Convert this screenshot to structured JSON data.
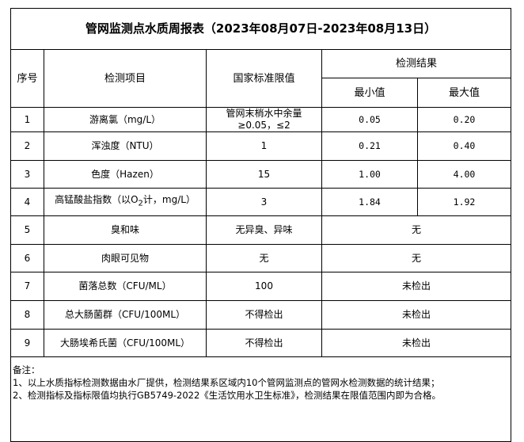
{
  "title": "管网监测点水质周报表（2023年08月07日-2023年08月13日）",
  "headers": {
    "seq": "序号",
    "item": "检测项目",
    "standard": "国家标准限值",
    "result": "检测结果",
    "min": "最小值",
    "max": "最大值"
  },
  "rows": [
    {
      "seq": "1",
      "item": "游离氯（mg/L）",
      "standard": "管网末梢水中余量≥0.05，≤2",
      "min": "0.05",
      "max": "0.20"
    },
    {
      "seq": "2",
      "item": "浑浊度（NTU）",
      "standard": "1",
      "min": "0.21",
      "max": "0.40"
    },
    {
      "seq": "3",
      "item": "色度（Hazen）",
      "standard": "15",
      "min": "1.00",
      "max": "4.00"
    },
    {
      "seq": "4",
      "item_pre": "高锰酸盐指数（以O",
      "item_sub": "2",
      "item_post": "计，mg/L）",
      "standard": "3",
      "min": "1.84",
      "max": "1.92"
    },
    {
      "seq": "5",
      "item": "臭和味",
      "standard": "无异臭、异味",
      "result": "无"
    },
    {
      "seq": "6",
      "item": "肉眼可见物",
      "standard": "无",
      "result": "无"
    },
    {
      "seq": "7",
      "item": "菌落总数（CFU/ML）",
      "standard": "100",
      "result": "未检出"
    },
    {
      "seq": "8",
      "item": "总大肠菌群（CFU/100ML）",
      "standard": "不得检出",
      "result": "未检出"
    },
    {
      "seq": "9",
      "item": "大肠埃希氏菌（CFU/100ML）",
      "standard": "不得检出",
      "result": "未检出"
    }
  ],
  "notes": {
    "heading": "备注：",
    "lines": [
      "1、以上水质指标检测数据由水厂提供，检测结果系区域内10个管网监测点的管网水检测数据的统计结果；",
      "2、检测指标及指标限值均执行GB5749-2022《生活饮用水卫生标准》，检测结果在限值范围内即为合格。"
    ]
  }
}
